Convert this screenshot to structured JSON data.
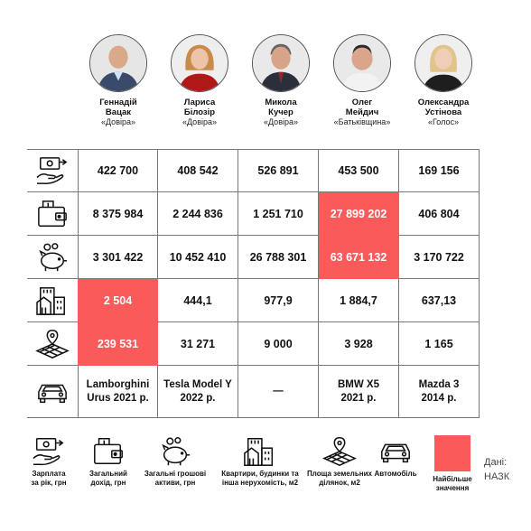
{
  "people": [
    {
      "name": "Геннадій\nВацак",
      "party": "«Довіра»"
    },
    {
      "name": "Лариса\nБілозір",
      "party": "«Довіра»"
    },
    {
      "name": "Микола\nКучер",
      "party": "«Довіра»"
    },
    {
      "name": "Олег\nМейдич",
      "party": "«Батьківщина»"
    },
    {
      "name": "Олександра\nУстінова",
      "party": "«Голос»"
    }
  ],
  "rows": [
    {
      "icon": "salary-icon",
      "values": [
        "422 700",
        "408 542",
        "526 891",
        "453 500",
        "169 156"
      ]
    },
    {
      "icon": "wallet-icon",
      "values": [
        "8 375 984",
        "2 244 836",
        "1 251 710",
        "27 899 202",
        "406 804"
      ]
    },
    {
      "icon": "piggy-bank-icon",
      "values": [
        "3 301 422",
        "10 452 410",
        "26 788 301",
        "63 671 132",
        "3 170 722"
      ]
    },
    {
      "icon": "buildings-icon",
      "values": [
        "2 504",
        "444,1",
        "977,9",
        "1 884,7",
        "637,13"
      ]
    },
    {
      "icon": "land-plot-icon",
      "values": [
        "239 531",
        "31 271",
        "9 000",
        "3 928",
        "1 165"
      ]
    },
    {
      "icon": "car-icon",
      "values": [
        "Lamborghini\nUrus 2021 р.",
        "Tesla Model Y\n2022 р.",
        "—",
        "BMW X5\n2021 р.",
        "Mazda 3\n2014 р."
      ]
    }
  ],
  "highlights": [
    [
      1,
      3
    ],
    [
      2,
      3
    ],
    [
      3,
      0
    ],
    [
      4,
      0
    ]
  ],
  "legend": {
    "items": [
      {
        "icon": "salary-icon",
        "label": "Зарплата\nза рік, грн"
      },
      {
        "icon": "wallet-icon",
        "label": "Загальний\nдохід, грн"
      },
      {
        "icon": "piggy-bank-icon",
        "label": "Загальні грошові\nактиви, грн"
      },
      {
        "icon": "buildings-icon",
        "label": "Квартири, будинки та\nінша нерухомість, м2"
      },
      {
        "icon": "land-plot-icon",
        "label": "Площа земельних\nділянок, м2"
      },
      {
        "icon": "car-icon",
        "label": "Автомобіль"
      }
    ],
    "highlight_label": "Найбільше\nзначення",
    "source": "Дані:\nНАЗК"
  },
  "colors": {
    "highlight": "#fa5a5a"
  }
}
